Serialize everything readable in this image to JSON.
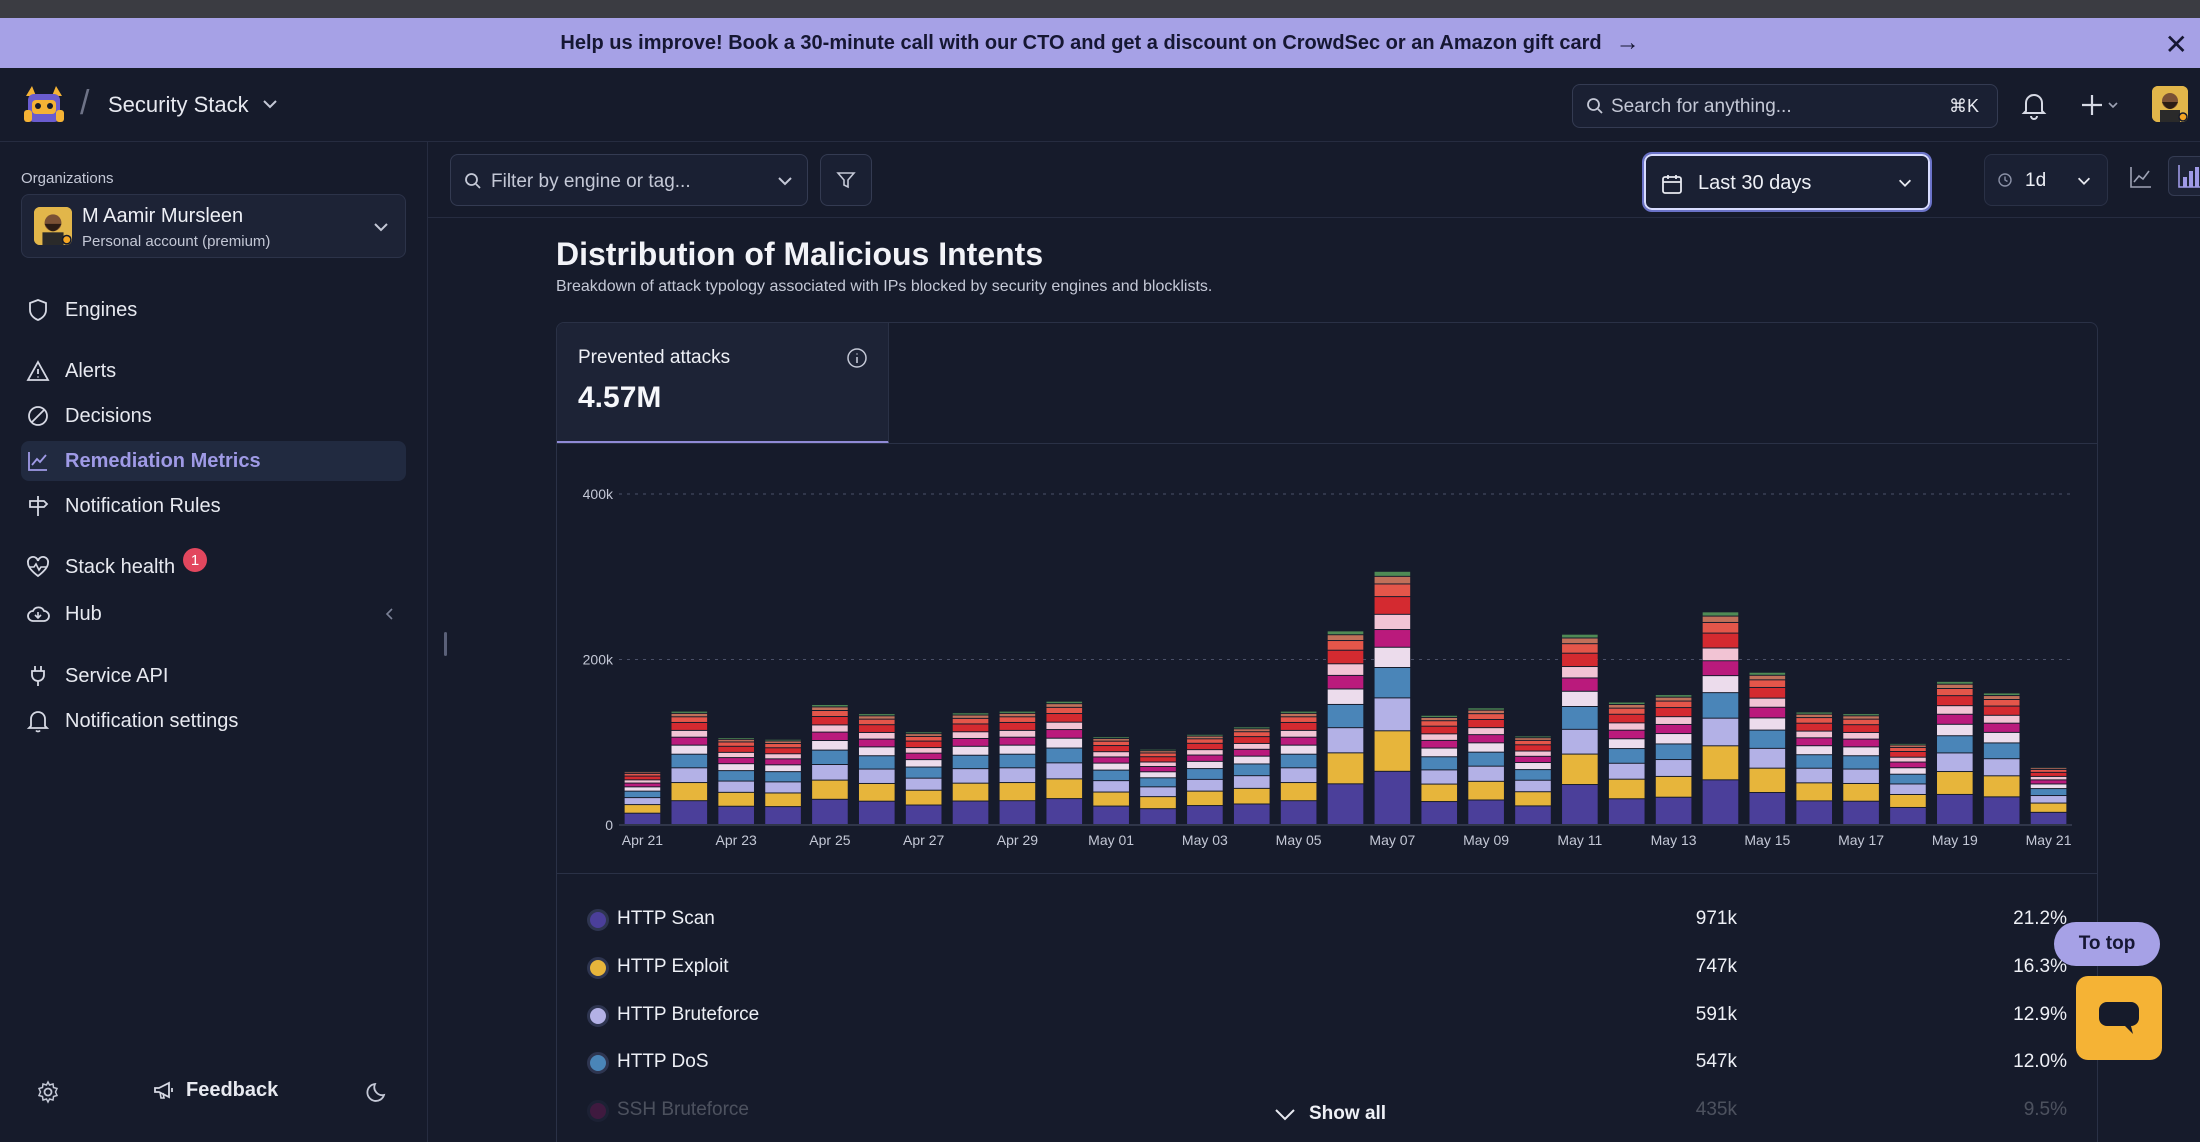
{
  "banner": {
    "text": "Help us improve! Book a 30-minute call with our CTO and get a discount on CrowdSec or an Amazon gift card",
    "arrow": "→",
    "close": "✕"
  },
  "header": {
    "stack_name": "Security Stack",
    "search_placeholder": "Search for anything...",
    "search_shortcut": "⌘K"
  },
  "sidebar": {
    "org_label": "Organizations",
    "org_name": "M Aamir Mursleen",
    "org_sub": "Personal account (premium)",
    "items": [
      {
        "label": "Engines",
        "icon": "shield-icon"
      },
      {
        "label": "Alerts",
        "icon": "alert-triangle-icon"
      },
      {
        "label": "Decisions",
        "icon": "ban-icon"
      },
      {
        "label": "Remediation Metrics",
        "icon": "chart-line-icon",
        "active": true
      },
      {
        "label": "Notification Rules",
        "icon": "signpost-icon"
      },
      {
        "label": "Stack health",
        "icon": "heart-pulse-icon",
        "badge": "1"
      },
      {
        "label": "Hub",
        "icon": "cloud-icon"
      },
      {
        "label": "Service API",
        "icon": "plug-icon"
      },
      {
        "label": "Notification settings",
        "icon": "bell-icon"
      }
    ],
    "feedback": "Feedback"
  },
  "toolbar": {
    "filter_placeholder": "Filter by engine or tag...",
    "range": "Last 30 days",
    "interval": "1d"
  },
  "section": {
    "title": "Distribution of Malicious Intents",
    "subtitle": "Breakdown of attack typology associated with IPs blocked by security engines and blocklists."
  },
  "metric": {
    "label": "Prevented attacks",
    "value": "4.57M"
  },
  "chart_data": {
    "type": "bar",
    "stacked": true,
    "ylim": [
      0,
      400000
    ],
    "y_ticks": [
      "0",
      "200k",
      "400k"
    ],
    "x_tick_labels": [
      "Apr 21",
      "Apr 23",
      "Apr 25",
      "Apr 27",
      "Apr 29",
      "May 01",
      "May 03",
      "May 05",
      "May 07",
      "May 09",
      "May 11",
      "May 13",
      "May 15",
      "May 17",
      "May 19",
      "May 21"
    ],
    "totals": [
      65000,
      137000,
      105000,
      103000,
      145000,
      134000,
      112000,
      135000,
      137000,
      149000,
      106000,
      91000,
      109000,
      118000,
      137000,
      234000,
      306000,
      132000,
      141000,
      107000,
      230000,
      148000,
      157000,
      257000,
      184000,
      136000,
      134000,
      98000,
      173000,
      159000,
      70000
    ],
    "segment_colors": [
      "#4b3f9a",
      "#e7b53b",
      "#b3b1e6",
      "#4a85b8",
      "#ecdcec",
      "#ba1a7c",
      "#f2c4d4",
      "#d42a30",
      "#e4564a",
      "#c0705a",
      "#4f8a55"
    ],
    "segment_shares": [
      0.21,
      0.16,
      0.13,
      0.12,
      0.08,
      0.07,
      0.06,
      0.07,
      0.05,
      0.03,
      0.02
    ],
    "grid": true,
    "legend": [
      {
        "name": "HTTP Scan",
        "count": "971k",
        "pct": "21.2%",
        "color": "#4b3f9a"
      },
      {
        "name": "HTTP Exploit",
        "count": "747k",
        "pct": "16.3%",
        "color": "#e7b53b"
      },
      {
        "name": "HTTP Bruteforce",
        "count": "591k",
        "pct": "12.9%",
        "color": "#b3b1e6"
      },
      {
        "name": "HTTP DoS",
        "count": "547k",
        "pct": "12.0%",
        "color": "#4a85b8"
      },
      {
        "name": "SSH Bruteforce",
        "count": "435k",
        "pct": "9.5%",
        "color": "#ba1a7c"
      }
    ]
  },
  "show_all": "Show all",
  "to_top": "To top"
}
